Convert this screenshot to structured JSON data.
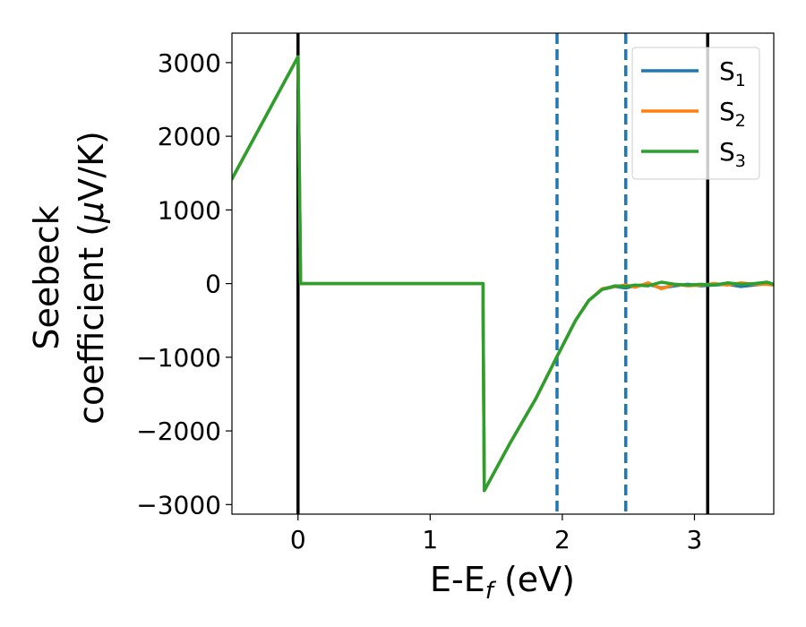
{
  "chart_data": {
    "type": "line",
    "title": "",
    "xlabel_main": "E-E",
    "xlabel_sub": "f",
    "xlabel_tail": " (eV)",
    "ylabel_line1": "Seebeck",
    "ylabel_line2_pre": "coefficient  (",
    "ylabel_line2_mu": "μ",
    "ylabel_line2_post": "V/K)",
    "xlim": [
      -0.5,
      3.6
    ],
    "ylim": [
      -3130,
      3400
    ],
    "xticks": [
      0,
      1,
      2,
      3
    ],
    "yticks": [
      -3000,
      -2000,
      -1000,
      0,
      1000,
      2000,
      3000
    ],
    "ytick_labels": [
      "−3000",
      "−2000",
      "−1000",
      "0",
      "1000",
      "2000",
      "3000"
    ],
    "grid": false,
    "legend_position": "top-right",
    "vlines": [
      {
        "x": 0.0,
        "color": "#000000",
        "style": "solid"
      },
      {
        "x": 3.1,
        "color": "#000000",
        "style": "solid"
      },
      {
        "x": 1.96,
        "color": "#1f77b4",
        "style": "dashed"
      },
      {
        "x": 2.48,
        "color": "#1f77b4",
        "style": "dashed"
      }
    ],
    "series": [
      {
        "name": "S",
        "sub": "1",
        "color": "#1f77b4",
        "x": [
          -0.5,
          0.0,
          0.02,
          1.4,
          1.4,
          1.41,
          1.6,
          1.8,
          1.96,
          2.1,
          2.2,
          2.3,
          2.4,
          2.48,
          2.55,
          2.65,
          2.75,
          2.85,
          2.95,
          3.05,
          3.15,
          3.25,
          3.35,
          3.45,
          3.55,
          3.6
        ],
        "y": [
          1420,
          3080,
          0,
          0,
          -300,
          -2810,
          -2180,
          -1560,
          -990,
          -500,
          -230,
          -80,
          -40,
          -60,
          -30,
          -10,
          -60,
          -30,
          -10,
          -30,
          -20,
          -10,
          -40,
          -20,
          0,
          -20
        ]
      },
      {
        "name": "S",
        "sub": "2",
        "color": "#ff7f0e",
        "x": [
          -0.5,
          0.0,
          0.02,
          1.4,
          1.4,
          1.41,
          1.6,
          1.8,
          1.96,
          2.1,
          2.2,
          2.3,
          2.4,
          2.48,
          2.55,
          2.65,
          2.75,
          2.85,
          2.95,
          3.05,
          3.15,
          3.25,
          3.35,
          3.45,
          3.55,
          3.6
        ],
        "y": [
          1420,
          3080,
          0,
          0,
          -300,
          -2810,
          -2180,
          -1560,
          -990,
          -500,
          -230,
          -70,
          -40,
          -20,
          -50,
          10,
          -70,
          -10,
          -30,
          -20,
          0,
          -20,
          10,
          -10,
          -10,
          -20
        ]
      },
      {
        "name": "S",
        "sub": "3",
        "color": "#2ca02c",
        "x": [
          -0.5,
          0.0,
          0.02,
          1.4,
          1.4,
          1.41,
          1.6,
          1.8,
          1.96,
          2.1,
          2.2,
          2.3,
          2.4,
          2.48,
          2.55,
          2.65,
          2.75,
          2.85,
          2.95,
          3.05,
          3.15,
          3.25,
          3.35,
          3.45,
          3.55,
          3.6
        ],
        "y": [
          1420,
          3080,
          0,
          0,
          -300,
          -2810,
          -2180,
          -1560,
          -990,
          -500,
          -230,
          -80,
          -30,
          -40,
          -20,
          -30,
          20,
          -10,
          -20,
          -10,
          -20,
          10,
          -10,
          0,
          20,
          -10
        ]
      }
    ]
  }
}
